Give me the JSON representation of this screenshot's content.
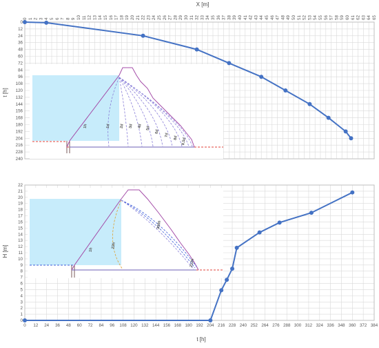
{
  "chart_data": [
    {
      "type": "line",
      "title": "",
      "xlabel": "X [m]",
      "ylabel": "t [h]",
      "x_axis_position": "top",
      "y_axis_inverted": true,
      "xlim": [
        0,
        65
      ],
      "ylim": [
        0,
        240
      ],
      "x_ticks": [
        "0",
        "1",
        "2",
        "3",
        "4",
        "5",
        "6",
        "7",
        "8",
        "9",
        "10",
        "11",
        "12",
        "13",
        "14",
        "15",
        "16",
        "17",
        "18",
        "19",
        "20",
        "21",
        "22",
        "23",
        "24",
        "25",
        "26",
        "27",
        "28",
        "29",
        "30",
        "31",
        "32",
        "33",
        "34",
        "35",
        "36",
        "37",
        "38",
        "39",
        "40",
        "41",
        "42",
        "43",
        "44",
        "45",
        "46",
        "47",
        "48",
        "49",
        "50",
        "51",
        "52",
        "53",
        "54",
        "55",
        "56",
        "57",
        "58",
        "59",
        "60",
        "61",
        "62",
        "63",
        "64",
        "65"
      ],
      "y_ticks": [
        "0",
        "12",
        "24",
        "36",
        "48",
        "60",
        "72",
        "84",
        "96",
        "108",
        "120",
        "132",
        "144",
        "156",
        "168",
        "180",
        "192",
        "204",
        "216",
        "228",
        "240"
      ],
      "grid": true,
      "series": [
        {
          "x": [
            0,
            4,
            22,
            32,
            38,
            44,
            48.5,
            53,
            56.5,
            59.7,
            60.7
          ],
          "y": [
            0,
            1,
            24,
            48,
            72,
            96,
            120,
            144,
            168,
            192,
            204
          ]
        }
      ],
      "inset_labels": [
        "1h",
        "1d",
        "2d",
        "3d",
        "4d",
        "5d",
        "6d",
        "7d",
        "8d",
        "8.5d"
      ]
    },
    {
      "type": "line",
      "title": "",
      "xlabel": "t [h]",
      "ylabel": "H [m]",
      "xlim": [
        0,
        384
      ],
      "ylim": [
        0,
        22
      ],
      "x_ticks": [
        "0",
        "12",
        "24",
        "36",
        "48",
        "60",
        "72",
        "84",
        "96",
        "108",
        "120",
        "132",
        "144",
        "156",
        "168",
        "180",
        "192",
        "204",
        "216",
        "228",
        "240",
        "252",
        "264",
        "276",
        "288",
        "300",
        "312",
        "324",
        "336",
        "348",
        "360",
        "372",
        "384"
      ],
      "y_ticks": [
        "0",
        "1",
        "2",
        "3",
        "4",
        "5",
        "6",
        "7",
        "8",
        "9",
        "10",
        "11",
        "12",
        "13",
        "14",
        "15",
        "16",
        "17",
        "18",
        "19",
        "20",
        "21",
        "22"
      ],
      "grid": true,
      "series": [
        {
          "x": [
            0,
            204,
            216,
            222,
            228,
            233,
            258,
            280,
            315,
            360
          ],
          "y": [
            0,
            0,
            4.9,
            6.6,
            8.4,
            11.8,
            14.3,
            15.9,
            17.5,
            20.8
          ]
        }
      ],
      "inset_labels": [
        "1h",
        "22h",
        "300h",
        "212h"
      ]
    }
  ]
}
